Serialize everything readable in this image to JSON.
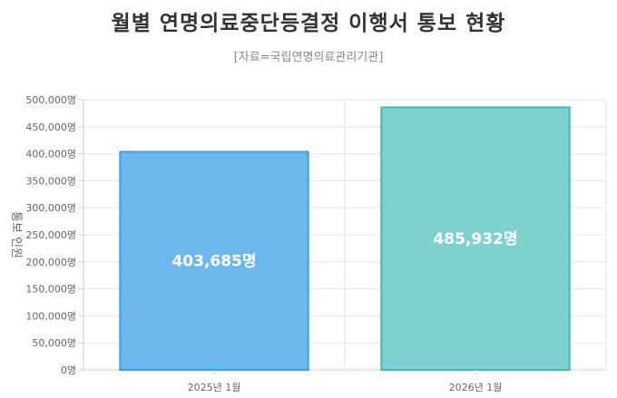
{
  "title": "월별 연명의료중단등결정 이행서 통보 현황",
  "subtitle": "[자료=국립연명의료관리기관]",
  "chart_data": {
    "type": "bar",
    "categories": [
      "2025년 1월",
      "2026년 1월"
    ],
    "values": [
      403685,
      485932
    ],
    "value_labels": [
      "403,685명",
      "485,932명"
    ],
    "ylabel": "통보 인원",
    "ylim": [
      0,
      500000
    ],
    "yticks": [
      0,
      50000,
      100000,
      150000,
      200000,
      250000,
      300000,
      350000,
      400000,
      450000,
      500000
    ],
    "ytick_labels": [
      "0명",
      "50,000명",
      "100,000명",
      "150,000명",
      "200,000명",
      "250,000명",
      "300,000명",
      "350,000명",
      "400,000명",
      "450,000명",
      "500,000명"
    ],
    "grid": true,
    "colors": {
      "fills": [
        "#6cb8ee",
        "#7ed1d0"
      ],
      "strokes": [
        "#3f9ee0",
        "#48b8b6"
      ]
    }
  }
}
